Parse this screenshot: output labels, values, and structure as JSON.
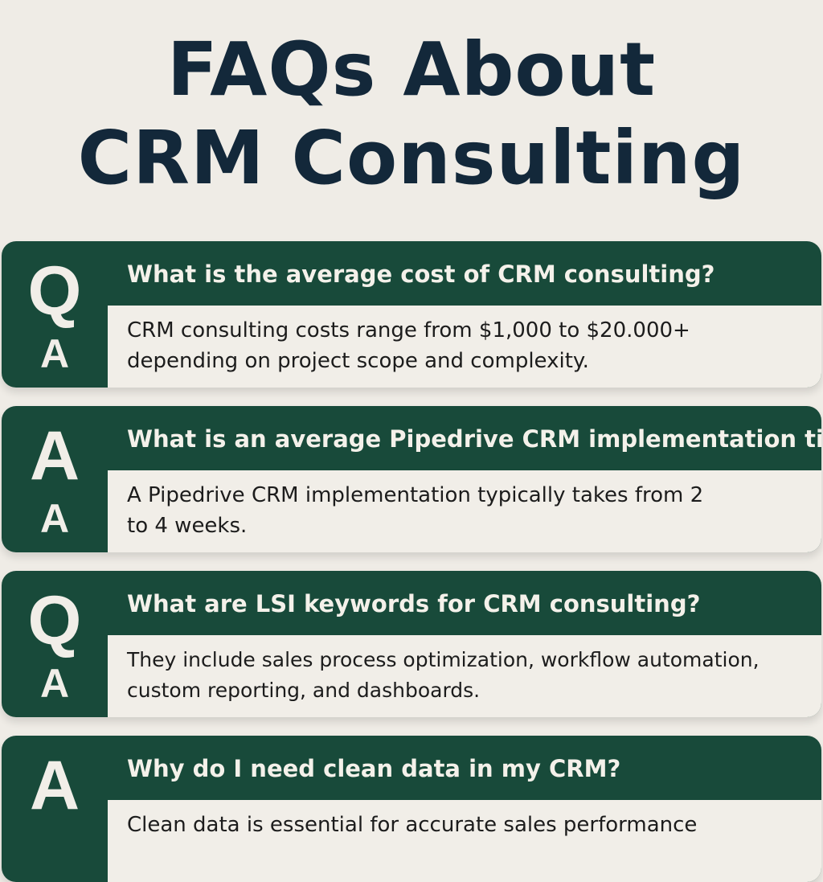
{
  "title": {
    "line1": "FAQs About",
    "line2": "CRM Consulting"
  },
  "faqs": [
    {
      "badge_top": "Q",
      "badge_bottom": "A",
      "question": "What is the average cost of CRM consulting?",
      "answer": "CRM consulting costs range from $1,000 to $20.000+ depending on project scope and complexity."
    },
    {
      "badge_top": "A",
      "badge_bottom": "A",
      "question": "What is an average Pipedrive CRM implementation time?",
      "answer": "A Pipedrive CRM implementation typically takes from 2 to 4 weeks."
    },
    {
      "badge_top": "Q",
      "badge_bottom": "A",
      "question": "What are LSI keywords for CRM consulting?",
      "answer": "They include sales process optimization, workflow automation, custom reporting, and dashboards."
    },
    {
      "badge_top": "A",
      "question": "Why do I need clean data in my CRM?",
      "answer": "Clean data is essential for accurate sales performance"
    }
  ],
  "colors": {
    "background": "#efece6",
    "green": "#184a3a",
    "title": "#13283a"
  }
}
